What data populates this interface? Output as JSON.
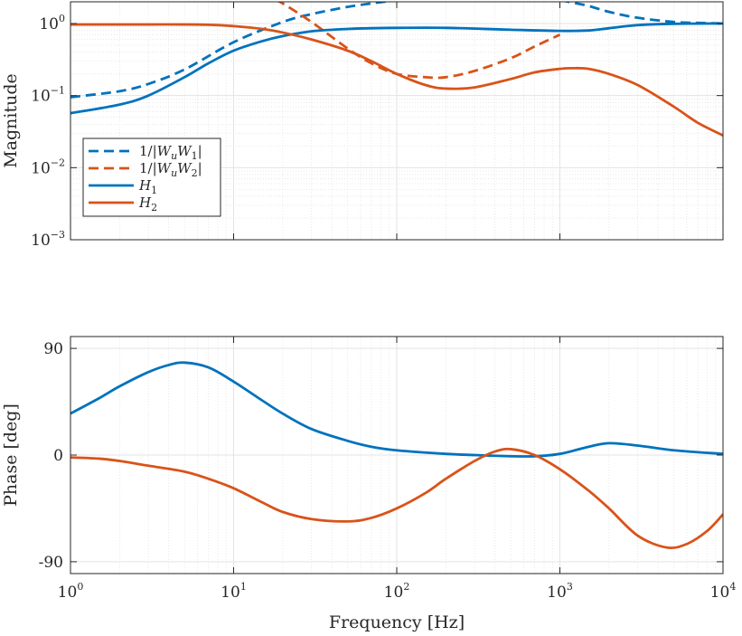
{
  "colors": {
    "blue": "#0072BD",
    "orange": "#D95319",
    "grid": "#e3e3e3",
    "axis": "#262626"
  },
  "chart_data": [
    {
      "type": "line",
      "xscale": "log",
      "yscale": "log",
      "xlim": [
        1,
        10000
      ],
      "ylim": [
        0.001,
        2
      ],
      "ylabel": "Magnitude",
      "xlabel": "",
      "grid": true,
      "legend_position": "bottom-left",
      "yticks": [
        {
          "value": 0.001,
          "base": "10",
          "exp": "−3"
        },
        {
          "value": 0.01,
          "base": "10",
          "exp": "−2"
        },
        {
          "value": 0.1,
          "base": "10",
          "exp": "−1"
        },
        {
          "value": 1,
          "base": "10",
          "exp": "0"
        }
      ],
      "series": [
        {
          "name": "1/|WuW1|",
          "legend_parts": [
            "1/|",
            "W",
            "u",
            "W",
            "1",
            "|"
          ],
          "color": "#0072BD",
          "dash": true,
          "x": [
            1,
            2,
            3,
            5,
            10,
            20,
            30,
            50,
            70,
            100
          ],
          "y": [
            0.095,
            0.115,
            0.145,
            0.23,
            0.55,
            1.05,
            1.35,
            1.7,
            1.9,
            2.1
          ]
        },
        {
          "name": "1/|WuW1|",
          "legend_parts": null,
          "color": "#0072BD",
          "dash": true,
          "x": [
            1000,
            1200,
            1500,
            2000,
            3000,
            5000,
            7000,
            10000
          ],
          "y": [
            2.1,
            1.95,
            1.75,
            1.45,
            1.2,
            1.05,
            1.02,
            1.0
          ]
        },
        {
          "name": "1/|WuW2|",
          "legend_parts": [
            "1/|",
            "W",
            "u",
            "W",
            "2",
            "|"
          ],
          "color": "#D95319",
          "dash": true,
          "x": [
            18,
            20,
            30,
            50,
            70,
            100,
            150,
            200,
            300,
            500,
            700,
            1000
          ],
          "y": [
            2.1,
            1.9,
            1.05,
            0.45,
            0.28,
            0.2,
            0.18,
            0.18,
            0.22,
            0.33,
            0.48,
            0.7
          ]
        },
        {
          "name": "H1",
          "legend_parts": [
            "H",
            "1"
          ],
          "color": "#0072BD",
          "dash": false,
          "x": [
            1,
            2,
            3,
            5,
            7,
            10,
            15,
            20,
            30,
            50,
            70,
            100,
            200,
            500,
            1000,
            1500,
            2000,
            3000,
            5000,
            10000
          ],
          "y": [
            0.057,
            0.075,
            0.1,
            0.18,
            0.28,
            0.42,
            0.57,
            0.67,
            0.78,
            0.84,
            0.86,
            0.87,
            0.87,
            0.82,
            0.79,
            0.8,
            0.86,
            0.95,
            0.99,
            1.0
          ]
        },
        {
          "name": "H2",
          "legend_parts": [
            "H",
            "2"
          ],
          "color": "#D95319",
          "dash": false,
          "x": [
            1,
            2,
            3,
            5,
            7,
            10,
            15,
            20,
            30,
            50,
            70,
            100,
            150,
            200,
            300,
            500,
            700,
            1000,
            1200,
            1500,
            2000,
            3000,
            5000,
            7000,
            10000
          ],
          "y": [
            0.97,
            0.97,
            0.97,
            0.97,
            0.96,
            0.92,
            0.84,
            0.75,
            0.6,
            0.42,
            0.3,
            0.2,
            0.14,
            0.125,
            0.13,
            0.17,
            0.21,
            0.235,
            0.24,
            0.235,
            0.2,
            0.14,
            0.07,
            0.042,
            0.028
          ]
        }
      ]
    },
    {
      "type": "line",
      "xscale": "log",
      "xlim": [
        1,
        10000
      ],
      "ylim": [
        -100,
        100
      ],
      "xlabel": "Frequency [Hz]",
      "ylabel": "Phase [deg]",
      "grid": true,
      "yticks": [
        {
          "value": -90,
          "label": "-90"
        },
        {
          "value": 0,
          "label": "0"
        },
        {
          "value": 90,
          "label": "90"
        }
      ],
      "xticks": [
        {
          "value": 1,
          "base": "10",
          "exp": "0"
        },
        {
          "value": 10,
          "base": "10",
          "exp": "1"
        },
        {
          "value": 100,
          "base": "10",
          "exp": "2"
        },
        {
          "value": 1000,
          "base": "10",
          "exp": "3"
        },
        {
          "value": 10000,
          "base": "10",
          "exp": "4"
        }
      ],
      "series": [
        {
          "name": "H1",
          "color": "#0072BD",
          "x": [
            1,
            1.5,
            2,
            3,
            4,
            5,
            7,
            10,
            15,
            20,
            30,
            50,
            70,
            100,
            200,
            300,
            500,
            700,
            1000,
            1500,
            2000,
            3000,
            5000,
            10000
          ],
          "y": [
            35,
            48,
            58,
            70,
            76,
            78,
            74,
            62,
            46,
            35,
            22,
            12,
            7,
            4,
            1,
            0,
            -1,
            -1,
            1,
            7,
            10,
            8,
            4,
            1
          ]
        },
        {
          "name": "H2",
          "color": "#D95319",
          "x": [
            1,
            1.5,
            2,
            3,
            5,
            7,
            10,
            15,
            20,
            30,
            50,
            70,
            100,
            150,
            200,
            300,
            400,
            500,
            700,
            1000,
            1500,
            2000,
            3000,
            4500,
            6000,
            8000,
            10000
          ],
          "y": [
            -2,
            -3,
            -5,
            -9,
            -14,
            -20,
            -28,
            -40,
            -48,
            -54,
            -56,
            -53,
            -45,
            -32,
            -20,
            -5,
            3,
            5,
            0,
            -12,
            -30,
            -45,
            -68,
            -78,
            -75,
            -64,
            -50
          ]
        }
      ]
    }
  ]
}
